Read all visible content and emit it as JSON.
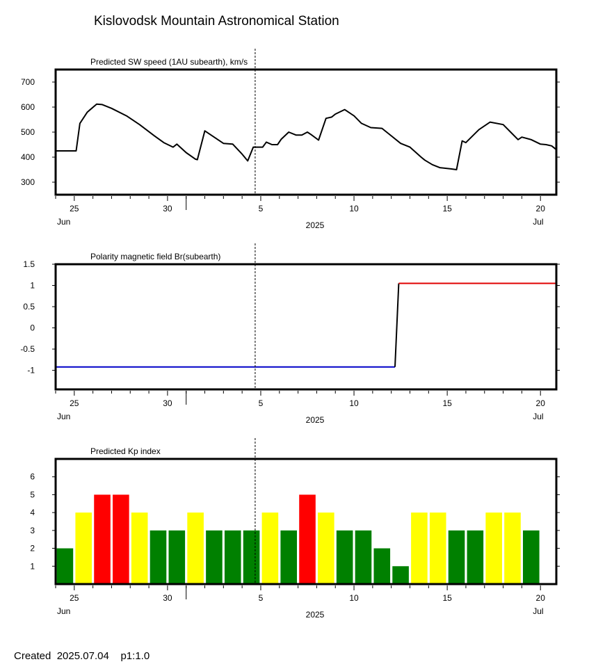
{
  "title": "Kislovodsk Mountain Astronomical Station",
  "footer": {
    "created_label": "Created",
    "created_date": "2025.07.04",
    "page": "p1:1.0"
  },
  "time_axis": {
    "ticks": [
      {
        "day": 25,
        "label": "25"
      },
      {
        "day": 30,
        "label": "30"
      },
      {
        "day": 35,
        "label": "5"
      },
      {
        "day": 40,
        "label": "10"
      },
      {
        "day": 45,
        "label": "15"
      },
      {
        "day": 50,
        "label": "20"
      }
    ],
    "month_labels": [
      {
        "day": 24,
        "label": "Jun"
      },
      {
        "day": 50,
        "label": "Jul"
      }
    ],
    "year_label": "2025",
    "month_break_day": 31,
    "range": [
      24.0,
      50.85
    ]
  },
  "current_time_day": 34.7,
  "chart_data": [
    {
      "type": "line",
      "title": "Predicted SW speed (1AU subearth), km/s",
      "ylim": [
        250,
        750
      ],
      "yticks": [
        300,
        400,
        500,
        600,
        700
      ],
      "x_unit": "day offset from 2025-06-00 (31 = Jul 1)",
      "series": [
        {
          "color": "#000000",
          "x": [
            24.0,
            25.1,
            25.3,
            25.7,
            26.2,
            26.5,
            27.0,
            27.8,
            28.5,
            29.3,
            29.8,
            30.3,
            30.5,
            31.0,
            31.5,
            31.6,
            32.0,
            32.5,
            33.0,
            33.5,
            34.0,
            34.3,
            34.6,
            34.9,
            35.1,
            35.3,
            35.6,
            35.9,
            36.1,
            36.5,
            36.9,
            37.2,
            37.5,
            37.7,
            38.1,
            38.5,
            38.8,
            39.0,
            39.5,
            40.0,
            40.4,
            40.9,
            41.5,
            42.0,
            42.5,
            43.0,
            43.3,
            43.6,
            43.8,
            44.2,
            44.6,
            45.2,
            45.5,
            45.8,
            46.0,
            46.7,
            47.3,
            48.0,
            48.4,
            48.8,
            49.0,
            49.5,
            50.0,
            50.3,
            50.6,
            50.85
          ],
          "y": [
            425,
            425,
            535,
            580,
            612,
            610,
            595,
            565,
            530,
            485,
            458,
            440,
            452,
            418,
            392,
            390,
            505,
            480,
            455,
            452,
            412,
            385,
            440,
            440,
            440,
            460,
            450,
            450,
            472,
            500,
            488,
            488,
            500,
            490,
            468,
            555,
            560,
            572,
            590,
            565,
            535,
            518,
            515,
            485,
            455,
            440,
            420,
            400,
            388,
            370,
            358,
            353,
            350,
            465,
            458,
            510,
            540,
            530,
            500,
            470,
            480,
            470,
            452,
            450,
            445,
            430
          ]
        }
      ]
    },
    {
      "type": "line",
      "title": "Polarity magnetic field  Br(subearth)",
      "ylim": [
        -1.45,
        1.5
      ],
      "yticks": [
        1.5,
        1,
        0.5,
        0,
        -0.5,
        -1
      ],
      "ytick_labels": [
        "1.5",
        "1",
        "0.5",
        "0",
        "-0.5",
        "-1"
      ],
      "x_unit": "day offset from 2025-06-00 (31 = Jul 1)",
      "series": [
        {
          "color": "#0000c8",
          "x": [
            24.0,
            42.2
          ],
          "y": [
            -0.92,
            -0.92
          ]
        },
        {
          "color": "#000000",
          "x": [
            42.2,
            42.4
          ],
          "y": [
            -0.92,
            1.05
          ]
        },
        {
          "color": "#e00000",
          "x": [
            42.4,
            50.85
          ],
          "y": [
            1.05,
            1.05
          ]
        }
      ]
    },
    {
      "type": "bar",
      "title": "Predicted Kp index",
      "ylim": [
        0,
        7
      ],
      "yticks": [
        1,
        2,
        3,
        4,
        5,
        6
      ],
      "colors": {
        "3": "#008000",
        "4": "#ffff00",
        "5": "#ff0000"
      },
      "x_unit": "day offset from 2025-06-00 (31 = Jul 1)",
      "x": [
        24.5,
        25.5,
        26.5,
        27.5,
        28.5,
        29.5,
        30.5,
        31.5,
        32.5,
        33.5,
        34.5,
        35.5,
        36.5,
        37.5,
        38.5,
        39.5,
        40.5,
        41.5,
        42.5,
        43.5,
        44.5,
        45.5,
        46.5,
        47.5,
        48.5,
        49.5
      ],
      "values": [
        2,
        4,
        5,
        5,
        4,
        3,
        3,
        4,
        3,
        3,
        3,
        4,
        3,
        5,
        4,
        3,
        3,
        2,
        1,
        4,
        4,
        3,
        3,
        4,
        4,
        3
      ]
    }
  ]
}
